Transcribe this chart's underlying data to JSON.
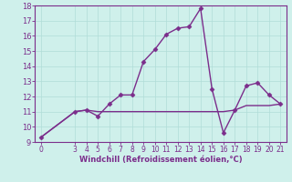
{
  "title": "",
  "xlabel": "Windchill (Refroidissement éolien,°C)",
  "x_values": [
    0,
    3,
    4,
    5,
    6,
    7,
    8,
    9,
    10,
    11,
    12,
    13,
    14,
    15,
    16,
    17,
    18,
    19,
    20,
    21
  ],
  "y_line1": [
    9.3,
    11.0,
    11.1,
    10.7,
    11.5,
    12.1,
    12.1,
    14.3,
    15.1,
    16.1,
    16.5,
    16.6,
    17.8,
    12.5,
    9.6,
    11.1,
    12.7,
    12.9,
    12.1,
    11.5
  ],
  "y_line2": [
    9.3,
    11.0,
    11.1,
    11.0,
    11.0,
    11.0,
    11.0,
    11.0,
    11.0,
    11.0,
    11.0,
    11.0,
    11.0,
    11.0,
    11.0,
    11.1,
    11.4,
    11.4,
    11.4,
    11.5
  ],
  "xlim": [
    -0.5,
    21.5
  ],
  "ylim": [
    9,
    18
  ],
  "yticks": [
    9,
    10,
    11,
    12,
    13,
    14,
    15,
    16,
    17,
    18
  ],
  "xticks": [
    0,
    3,
    4,
    5,
    6,
    7,
    8,
    9,
    10,
    11,
    12,
    13,
    14,
    15,
    16,
    17,
    18,
    19,
    20,
    21
  ],
  "line_color": "#7b2d8b",
  "marker": "D",
  "marker_size": 2.5,
  "bg_color": "#cff0eb",
  "grid_color": "#b0ddd8",
  "xlabel_color": "#7b2d8b",
  "tick_color": "#7b2d8b",
  "line_width": 1.0,
  "spine_color": "#7b2d8b"
}
